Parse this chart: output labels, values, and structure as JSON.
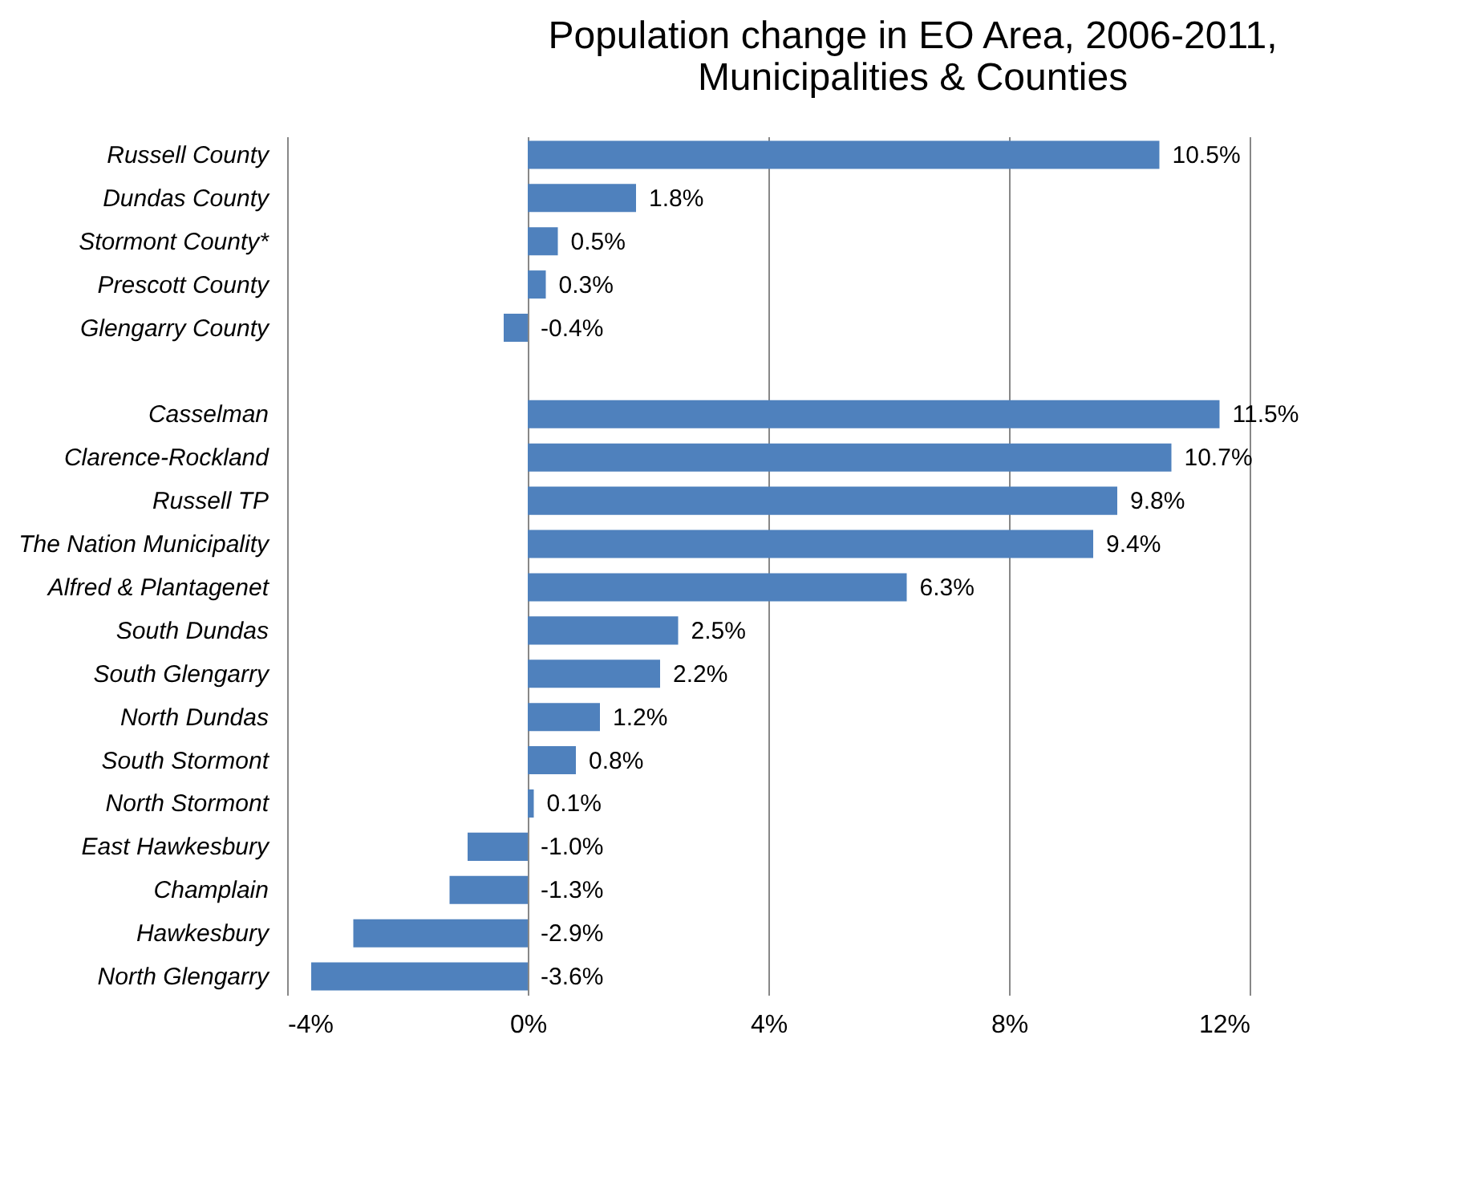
{
  "chart_data": {
    "type": "bar",
    "orientation": "horizontal",
    "title": "Population change in EO Area, 2006-2011,\nMunicipalities & Counties",
    "categories": [
      "Russell County",
      "Dundas County",
      "Stormont County*",
      "Prescott County",
      "Glengarry County",
      null,
      "Casselman",
      "Clarence-Rockland",
      "Russell TP",
      "The Nation Municipality",
      "Alfred & Plantagenet",
      "South Dundas",
      "South Glengarry",
      "North Dundas",
      "South Stormont",
      "North Stormont",
      "East Hawkesbury",
      "Champlain",
      "Hawkesbury",
      "North Glengarry"
    ],
    "values": [
      10.5,
      1.8,
      0.5,
      0.3,
      -0.4,
      null,
      11.5,
      10.7,
      9.8,
      9.4,
      6.3,
      2.5,
      2.2,
      1.2,
      0.8,
      0.1,
      -1.0,
      -1.3,
      -2.9,
      -3.6
    ],
    "value_labels": [
      "10.5%",
      "1.8%",
      "0.5%",
      "0.3%",
      "-0.4%",
      null,
      "11.5%",
      "10.7%",
      "9.8%",
      "9.4%",
      "6.3%",
      "2.5%",
      "2.2%",
      "1.2%",
      "0.8%",
      "0.1%",
      "-1.0%",
      "-1.3%",
      "-2.9%",
      "-3.6%"
    ],
    "color": "#4f81bd",
    "xlim": [
      -4,
      12
    ],
    "xticks": [
      {
        "value": -4,
        "label": "-4%"
      },
      {
        "value": 0,
        "label": "0%"
      },
      {
        "value": 4,
        "label": "4%"
      },
      {
        "value": 8,
        "label": "8%"
      },
      {
        "value": 12,
        "label": "12%"
      }
    ],
    "grid": "x"
  }
}
